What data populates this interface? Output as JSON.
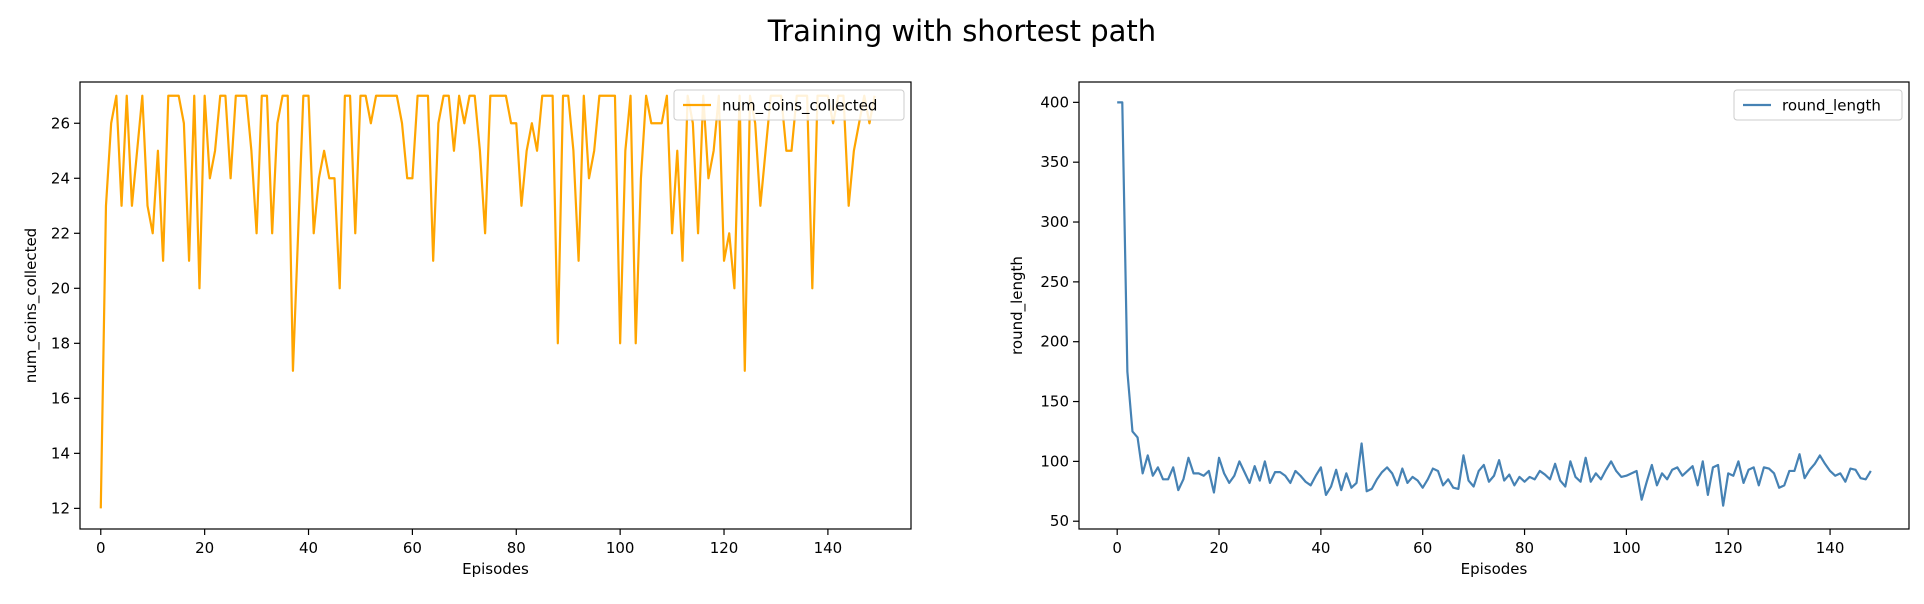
{
  "title": "Training with shortest path",
  "colors": {
    "coins": "#ffa500",
    "round": "#4682b4"
  },
  "chart_data": [
    {
      "type": "line",
      "xlabel": "Episodes",
      "ylabel": "num_coins_collected",
      "xlim": [
        -4,
        156
      ],
      "ylim": [
        11.25,
        27.5
      ],
      "xticks": [
        0,
        20,
        40,
        60,
        80,
        100,
        120,
        140
      ],
      "yticks": [
        12,
        14,
        16,
        18,
        20,
        22,
        24,
        26
      ],
      "legend": "top-right",
      "grid": false,
      "series": [
        {
          "name": "num_coins_collected",
          "color": "#ffa500",
          "x_start": 0,
          "values": [
            12,
            23,
            26,
            27,
            23,
            27,
            23,
            25,
            27,
            23,
            22,
            25,
            21,
            27,
            27,
            27,
            26,
            21,
            27,
            20,
            27,
            24,
            25,
            27,
            27,
            24,
            27,
            27,
            27,
            25,
            22,
            27,
            27,
            22,
            26,
            27,
            27,
            17,
            22,
            27,
            27,
            22,
            24,
            25,
            24,
            24,
            20,
            27,
            27,
            22,
            27,
            27,
            26,
            27,
            27,
            27,
            27,
            27,
            26,
            24,
            24,
            27,
            27,
            27,
            21,
            26,
            27,
            27,
            25,
            27,
            26,
            27,
            27,
            25,
            22,
            27,
            27,
            27,
            27,
            26,
            26,
            23,
            25,
            26,
            25,
            27,
            27,
            27,
            18,
            27,
            27,
            25,
            21,
            27,
            24,
            25,
            27,
            27,
            27,
            27,
            18,
            25,
            27,
            18,
            24,
            27,
            26,
            26,
            26,
            27,
            22,
            25,
            21,
            27,
            26,
            22,
            27,
            24,
            25,
            27,
            21,
            22,
            20,
            27,
            17,
            27,
            26,
            23,
            25,
            27,
            27,
            27,
            25,
            25,
            27,
            27,
            27,
            20,
            27,
            27,
            27,
            26,
            27,
            27,
            23,
            25,
            26,
            27,
            26,
            27
          ]
        }
      ]
    },
    {
      "type": "line",
      "xlabel": "Episodes",
      "ylabel": "round_length",
      "xlim": [
        -7.5,
        155.5
      ],
      "ylim": [
        43.5,
        417
      ],
      "xticks": [
        0,
        20,
        40,
        60,
        80,
        100,
        120,
        140
      ],
      "yticks": [
        50,
        100,
        150,
        200,
        250,
        300,
        350,
        400
      ],
      "legend": "top-right",
      "grid": false,
      "series": [
        {
          "name": "round_length",
          "color": "#4682b4",
          "x_start": 0,
          "values": [
            400,
            400,
            175,
            125,
            120,
            90,
            105,
            88,
            95,
            85,
            85,
            95,
            76,
            85,
            103,
            90,
            90,
            88,
            92,
            74,
            103,
            90,
            82,
            88,
            100,
            91,
            82,
            96,
            84,
            100,
            82,
            91,
            91,
            88,
            82,
            92,
            88,
            83,
            80,
            88,
            95,
            72,
            79,
            93,
            76,
            90,
            78,
            82,
            115,
            75,
            77,
            85,
            91,
            95,
            90,
            80,
            94,
            82,
            87,
            84,
            78,
            85,
            94,
            92,
            80,
            85,
            78,
            77,
            105,
            84,
            79,
            92,
            97,
            83,
            88,
            101,
            84,
            89,
            80,
            87,
            83,
            87,
            85,
            92,
            89,
            85,
            98,
            84,
            79,
            100,
            87,
            83,
            103,
            83,
            90,
            85,
            93,
            100,
            92,
            87,
            88,
            90,
            92,
            68,
            83,
            97,
            80,
            90,
            85,
            93,
            95,
            88,
            92,
            96,
            80,
            100,
            72,
            95,
            97,
            63,
            90,
            88,
            100,
            82,
            93,
            95,
            80,
            95,
            94,
            90,
            78,
            80,
            92,
            92,
            106,
            86,
            93,
            98,
            105,
            98,
            92,
            88,
            90,
            83,
            94,
            93,
            86,
            85,
            92
          ]
        }
      ]
    }
  ]
}
